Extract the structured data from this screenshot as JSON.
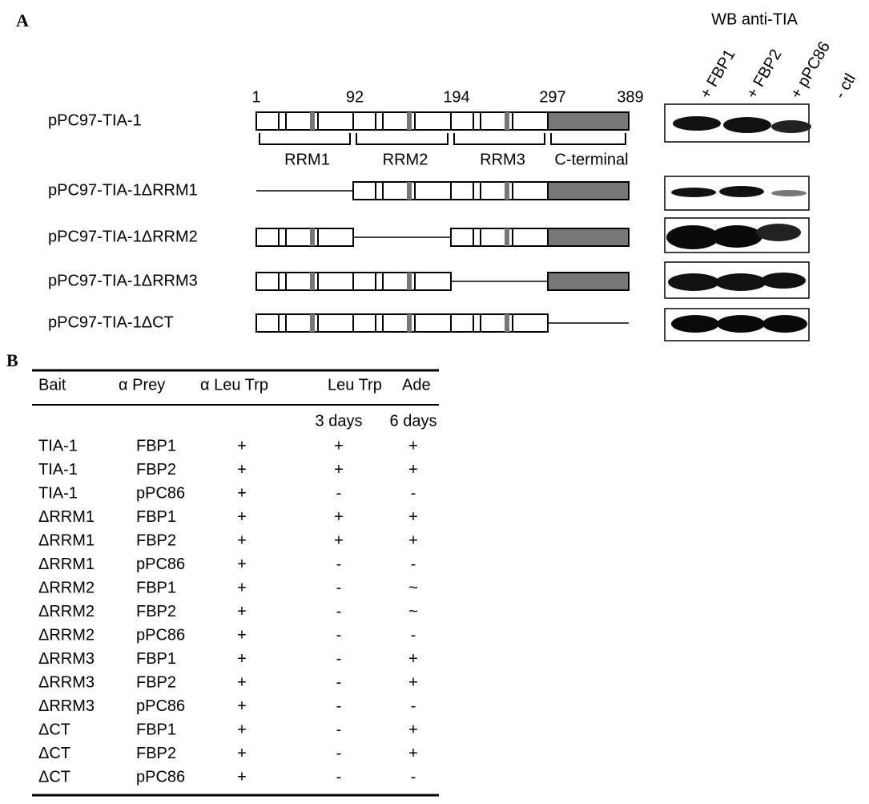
{
  "panel_a": {
    "label": "A",
    "blot_title": "WB anti-TIA",
    "lanes": [
      "+ FBP1",
      "+ FBP2",
      "+ pPC86",
      "- ctl"
    ],
    "positions": [
      "1",
      "92",
      "194",
      "297",
      "389"
    ],
    "domains": [
      "RRM1",
      "RRM2",
      "RRM3",
      "C-terminal"
    ],
    "constructs": [
      "pPC97-TIA-1",
      "pPC97-TIA-1ΔRRM1",
      "pPC97-TIA-1ΔRRM2",
      "pPC97-TIA-1ΔRRM3",
      "pPC97-TIA-1ΔCT"
    ]
  },
  "panel_b": {
    "label": "B",
    "table": {
      "header": [
        "Bait",
        "α Prey",
        "α Leu Trp",
        "Leu Trp",
        "Ade"
      ],
      "subheader": [
        "3 days",
        "6 days"
      ],
      "rows": [
        [
          "TIA-1",
          "FBP1",
          "+",
          "+",
          "+"
        ],
        [
          "TIA-1",
          "FBP2",
          "+",
          "+",
          "+"
        ],
        [
          "TIA-1",
          "pPC86",
          "+",
          "-",
          "-"
        ],
        [
          "ΔRRM1",
          "FBP1",
          "+",
          "+",
          "+"
        ],
        [
          "ΔRRM1",
          "FBP2",
          "+",
          "+",
          "+"
        ],
        [
          "ΔRRM1",
          "pPC86",
          "+",
          "-",
          "-"
        ],
        [
          "ΔRRM2",
          "FBP1",
          "+",
          "-",
          "~"
        ],
        [
          "ΔRRM2",
          "FBP2",
          "+",
          "-",
          "~"
        ],
        [
          "ΔRRM2",
          "pPC86",
          "+",
          "-",
          "-"
        ],
        [
          "ΔRRM3",
          "FBP1",
          "+",
          "-",
          "+"
        ],
        [
          "ΔRRM3",
          "FBP2",
          "+",
          "-",
          "+"
        ],
        [
          "ΔRRM3",
          "pPC86",
          "+",
          "-",
          "-"
        ],
        [
          "ΔCT",
          "FBP1",
          "+",
          "-",
          "+"
        ],
        [
          "ΔCT",
          "FBP2",
          "+",
          "-",
          "+"
        ],
        [
          "ΔCT",
          "pPC86",
          "+",
          "-",
          "-"
        ]
      ]
    }
  }
}
